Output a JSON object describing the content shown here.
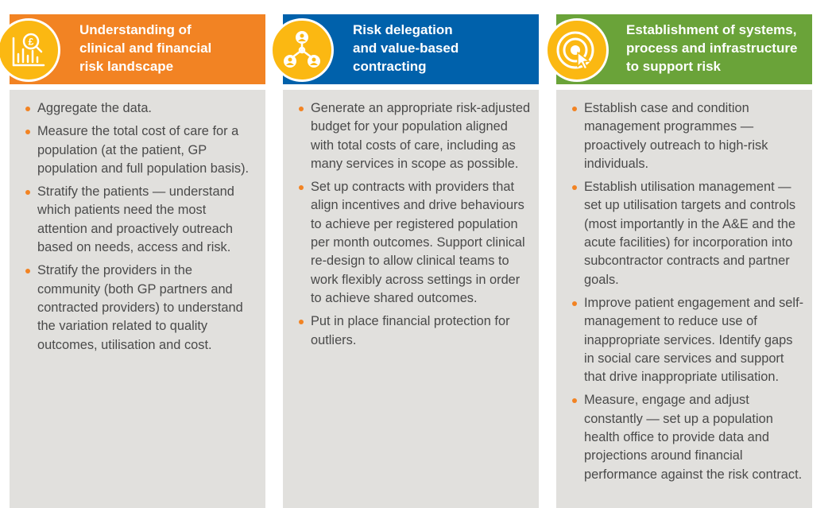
{
  "columns": [
    {
      "title": "Understanding of\nclinical and financial\nrisk landscape",
      "icon": "financial-analysis-icon",
      "items": [
        "Aggregate the data.",
        "Measure the total cost of care for a population (at the patient, GP population and full population basis).",
        "Stratify the patients — understand which patients need the most attention and proactively outreach based on needs, access and risk.",
        "Stratify the providers in the community (both GP partners and contracted providers) to understand the variation related to quality outcomes, utilisation and cost."
      ]
    },
    {
      "title": "Risk delegation\nand value-based\ncontracting",
      "icon": "people-network-icon",
      "items": [
        "Generate an appropriate risk-adjusted budget for your population aligned with total costs of care, including as many services in scope as possible.",
        "Set up contracts with providers that align incentives and drive behaviours to achieve per registered population per month outcomes. Support clinical re-design to allow clinical teams to work flexibly across settings in order to achieve shared outcomes.",
        "Put in place financial protection for outliers."
      ]
    },
    {
      "title": "Establishment of systems,\nprocess and infrastructure\nto support risk",
      "icon": "target-cursor-icon",
      "items": [
        "Establish case and condition management programmes — proactively outreach to high-risk individuals.",
        "Establish utilisation management — set up utilisation targets and controls (most importantly in the A&E and the acute facilities) for incorporation into subcontractor contracts and partner goals.",
        "Improve patient engagement and self-management to reduce use of inappropriate services. Identify gaps in social care services and support that drive inappropriate utilisation.",
        "Measure, engage and adjust constantly — set up a population health office to provide data and projections around financial performance against the risk contract."
      ]
    }
  ],
  "colors": {
    "orange": "#f28323",
    "blue": "#0061ab",
    "green": "#6aa339",
    "badge": "#fbb812",
    "panel": "#e1e0dd",
    "text": "#4a4a4a"
  }
}
